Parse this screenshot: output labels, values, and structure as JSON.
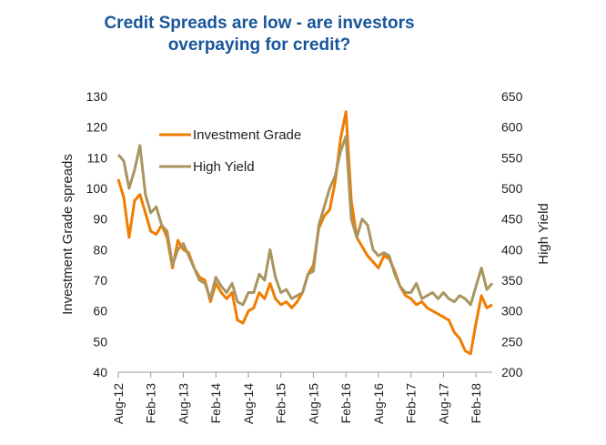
{
  "title_line1": "Credit Spreads are low - are investors",
  "title_line2": "overpaying for credit?",
  "chart_data": {
    "type": "line",
    "title": "Credit Spreads are low - are investors overpaying for credit?",
    "ylabel": "Investment Grade spreads",
    "y2label": "High Yield",
    "ylim": [
      40,
      130
    ],
    "y2lim": [
      200,
      650
    ],
    "yticks": [
      40,
      50,
      60,
      70,
      80,
      90,
      100,
      110,
      120,
      130
    ],
    "y2ticks": [
      200,
      250,
      300,
      350,
      400,
      450,
      500,
      550,
      600,
      650
    ],
    "xlim": [
      "2012-08",
      "2018-05"
    ],
    "xticks": [
      {
        "label": "Aug-12",
        "date": "2012-08"
      },
      {
        "label": "Feb-13",
        "date": "2013-02"
      },
      {
        "label": "Aug-13",
        "date": "2013-08"
      },
      {
        "label": "Feb-14",
        "date": "2014-02"
      },
      {
        "label": "Aug-14",
        "date": "2014-08"
      },
      {
        "label": "Feb-15",
        "date": "2015-02"
      },
      {
        "label": "Aug-15",
        "date": "2015-08"
      },
      {
        "label": "Feb-16",
        "date": "2016-02"
      },
      {
        "label": "Aug-16",
        "date": "2016-08"
      },
      {
        "label": "Feb-17",
        "date": "2017-02"
      },
      {
        "label": "Aug-17",
        "date": "2017-08"
      },
      {
        "label": "Feb-18",
        "date": "2018-02"
      }
    ],
    "legend_position": "top-left",
    "grid": false,
    "series": [
      {
        "name": "Investment Grade",
        "axis": "left",
        "color": "#f07c00",
        "points": [
          [
            "2012-08",
            103
          ],
          [
            "2012-09",
            97
          ],
          [
            "2012-10",
            84
          ],
          [
            "2012-11",
            96
          ],
          [
            "2012-12",
            98
          ],
          [
            "2013-01",
            92
          ],
          [
            "2013-02",
            86
          ],
          [
            "2013-03",
            85
          ],
          [
            "2013-04",
            88
          ],
          [
            "2013-05",
            84
          ],
          [
            "2013-06",
            74
          ],
          [
            "2013-07",
            83
          ],
          [
            "2013-08",
            80
          ],
          [
            "2013-09",
            79
          ],
          [
            "2013-10",
            74
          ],
          [
            "2013-11",
            71
          ],
          [
            "2013-12",
            70
          ],
          [
            "2014-01",
            63
          ],
          [
            "2014-02",
            69
          ],
          [
            "2014-03",
            66
          ],
          [
            "2014-04",
            64
          ],
          [
            "2014-05",
            66
          ],
          [
            "2014-06",
            57
          ],
          [
            "2014-07",
            56
          ],
          [
            "2014-08",
            60
          ],
          [
            "2014-09",
            61
          ],
          [
            "2014-10",
            66
          ],
          [
            "2014-11",
            64
          ],
          [
            "2014-12",
            69
          ],
          [
            "2015-01",
            64
          ],
          [
            "2015-02",
            62
          ],
          [
            "2015-03",
            63
          ],
          [
            "2015-04",
            61
          ],
          [
            "2015-05",
            63
          ],
          [
            "2015-06",
            66
          ],
          [
            "2015-07",
            72
          ],
          [
            "2015-08",
            75
          ],
          [
            "2015-09",
            87
          ],
          [
            "2015-10",
            91
          ],
          [
            "2015-11",
            93
          ],
          [
            "2015-12",
            102
          ],
          [
            "2016-01",
            116
          ],
          [
            "2016-02",
            125
          ],
          [
            "2016-03",
            96
          ],
          [
            "2016-04",
            84
          ],
          [
            "2016-05",
            81
          ],
          [
            "2016-06",
            78
          ],
          [
            "2016-07",
            76
          ],
          [
            "2016-08",
            74
          ],
          [
            "2016-09",
            78
          ],
          [
            "2016-10",
            77
          ],
          [
            "2016-11",
            73
          ],
          [
            "2016-12",
            68
          ],
          [
            "2017-01",
            65
          ],
          [
            "2017-02",
            64
          ],
          [
            "2017-03",
            62
          ],
          [
            "2017-04",
            63
          ],
          [
            "2017-05",
            61
          ],
          [
            "2017-06",
            60
          ],
          [
            "2017-07",
            59
          ],
          [
            "2017-08",
            58
          ],
          [
            "2017-09",
            57
          ],
          [
            "2017-10",
            53
          ],
          [
            "2017-11",
            51
          ],
          [
            "2017-12",
            47
          ],
          [
            "2018-01",
            46
          ],
          [
            "2018-02",
            56
          ],
          [
            "2018-03",
            65
          ],
          [
            "2018-04",
            61
          ],
          [
            "2018-05",
            62
          ]
        ]
      },
      {
        "name": "High Yield",
        "axis": "right",
        "color": "#a8955f",
        "points": [
          [
            "2012-08",
            555
          ],
          [
            "2012-09",
            545
          ],
          [
            "2012-10",
            500
          ],
          [
            "2012-11",
            530
          ],
          [
            "2012-12",
            570
          ],
          [
            "2013-01",
            490
          ],
          [
            "2013-02",
            460
          ],
          [
            "2013-03",
            470
          ],
          [
            "2013-04",
            440
          ],
          [
            "2013-05",
            430
          ],
          [
            "2013-06",
            375
          ],
          [
            "2013-07",
            400
          ],
          [
            "2013-08",
            410
          ],
          [
            "2013-09",
            390
          ],
          [
            "2013-10",
            370
          ],
          [
            "2013-11",
            350
          ],
          [
            "2013-12",
            345
          ],
          [
            "2014-01",
            320
          ],
          [
            "2014-02",
            355
          ],
          [
            "2014-03",
            340
          ],
          [
            "2014-04",
            330
          ],
          [
            "2014-05",
            345
          ],
          [
            "2014-06",
            315
          ],
          [
            "2014-07",
            310
          ],
          [
            "2014-08",
            330
          ],
          [
            "2014-09",
            330
          ],
          [
            "2014-10",
            360
          ],
          [
            "2014-11",
            350
          ],
          [
            "2014-12",
            400
          ],
          [
            "2015-01",
            355
          ],
          [
            "2015-02",
            330
          ],
          [
            "2015-03",
            335
          ],
          [
            "2015-04",
            320
          ],
          [
            "2015-05",
            325
          ],
          [
            "2015-06",
            330
          ],
          [
            "2015-07",
            360
          ],
          [
            "2015-08",
            365
          ],
          [
            "2015-09",
            440
          ],
          [
            "2015-10",
            470
          ],
          [
            "2015-11",
            500
          ],
          [
            "2015-12",
            520
          ],
          [
            "2016-01",
            560
          ],
          [
            "2016-02",
            585
          ],
          [
            "2016-03",
            450
          ],
          [
            "2016-04",
            420
          ],
          [
            "2016-05",
            450
          ],
          [
            "2016-06",
            440
          ],
          [
            "2016-07",
            400
          ],
          [
            "2016-08",
            390
          ],
          [
            "2016-09",
            395
          ],
          [
            "2016-10",
            390
          ],
          [
            "2016-11",
            360
          ],
          [
            "2016-12",
            340
          ],
          [
            "2017-01",
            330
          ],
          [
            "2017-02",
            330
          ],
          [
            "2017-03",
            345
          ],
          [
            "2017-04",
            320
          ],
          [
            "2017-05",
            325
          ],
          [
            "2017-06",
            330
          ],
          [
            "2017-07",
            320
          ],
          [
            "2017-08",
            330
          ],
          [
            "2017-09",
            320
          ],
          [
            "2017-10",
            315
          ],
          [
            "2017-11",
            325
          ],
          [
            "2017-12",
            320
          ],
          [
            "2018-01",
            310
          ],
          [
            "2018-02",
            340
          ],
          [
            "2018-03",
            370
          ],
          [
            "2018-04",
            335
          ],
          [
            "2018-05",
            345
          ]
        ]
      }
    ]
  }
}
